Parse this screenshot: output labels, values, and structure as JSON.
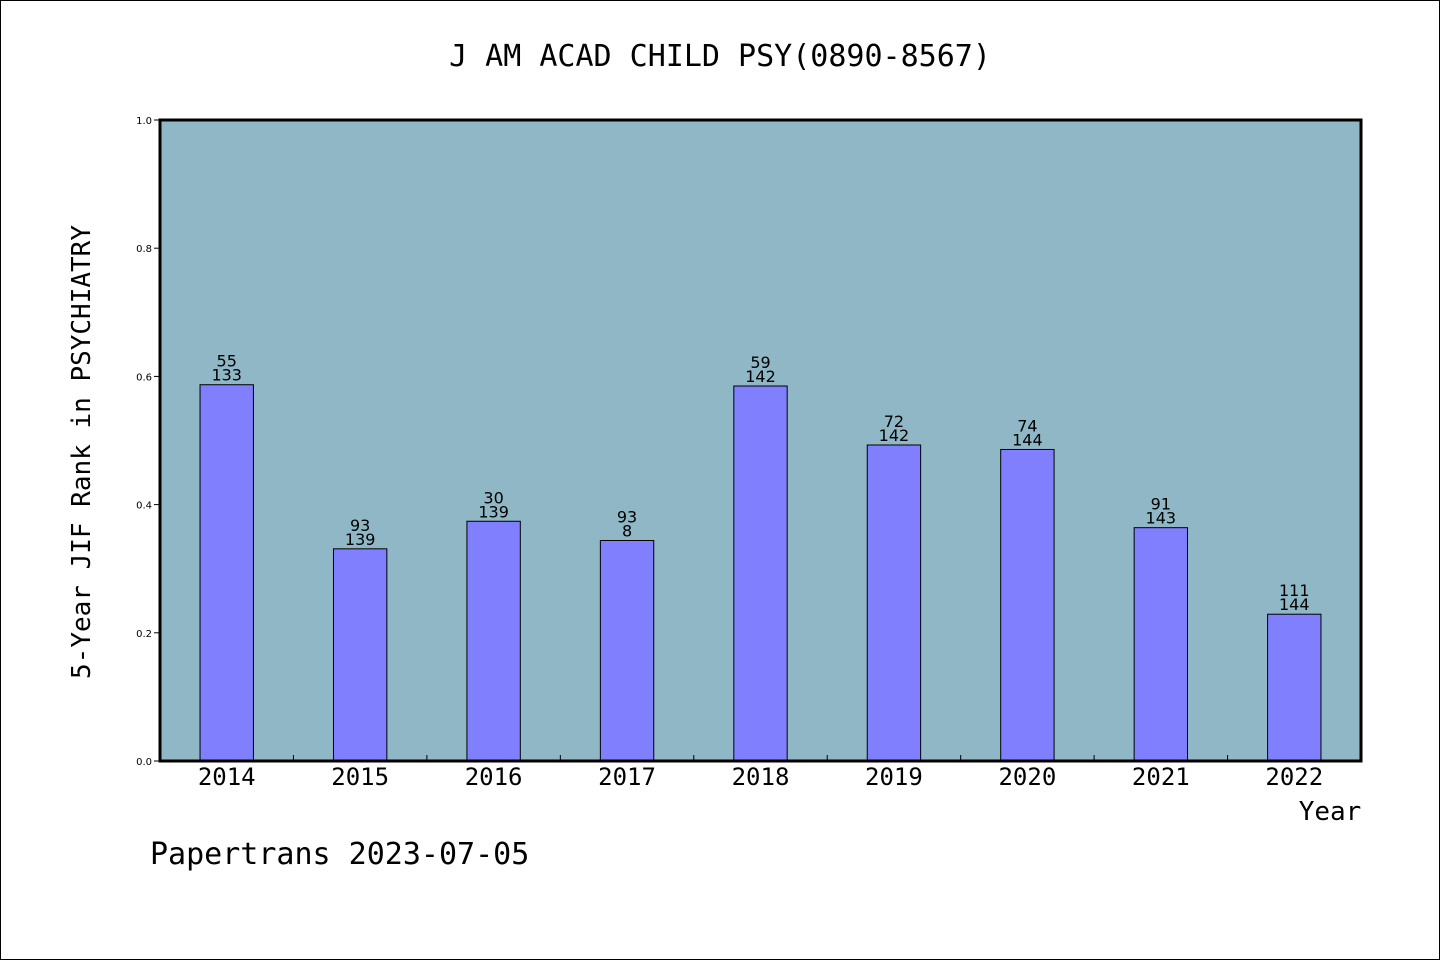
{
  "chart_data": {
    "type": "bar",
    "title": "J AM ACAD CHILD PSY(0890-8567)",
    "xlabel": "Year",
    "ylabel": "5-Year JIF Rank in PSYCHIATRY",
    "ylim": [
      0,
      1.0
    ],
    "yticks": [
      "0.0",
      "0.2",
      "0.4",
      "0.6",
      "0.8",
      "1.0"
    ],
    "categories": [
      "2014",
      "2015",
      "2016",
      "2017",
      "2018",
      "2019",
      "2020",
      "2021",
      "2022"
    ],
    "values": [
      0.587,
      0.331,
      0.374,
      0.344,
      0.585,
      0.493,
      0.486,
      0.364,
      0.229
    ],
    "labels": [
      [
        "55",
        "133"
      ],
      [
        "93",
        "139"
      ],
      [
        "30",
        "139"
      ],
      [
        "93",
        "8"
      ],
      [
        "59",
        "142"
      ],
      [
        "72",
        "142"
      ],
      [
        "74",
        "144"
      ],
      [
        "91",
        "143"
      ],
      [
        "111",
        "144"
      ]
    ],
    "plot_background": "#8fb7c5",
    "bar_color": "#8080ff",
    "grid": false
  },
  "footer": "Papertrans 2023-07-05"
}
